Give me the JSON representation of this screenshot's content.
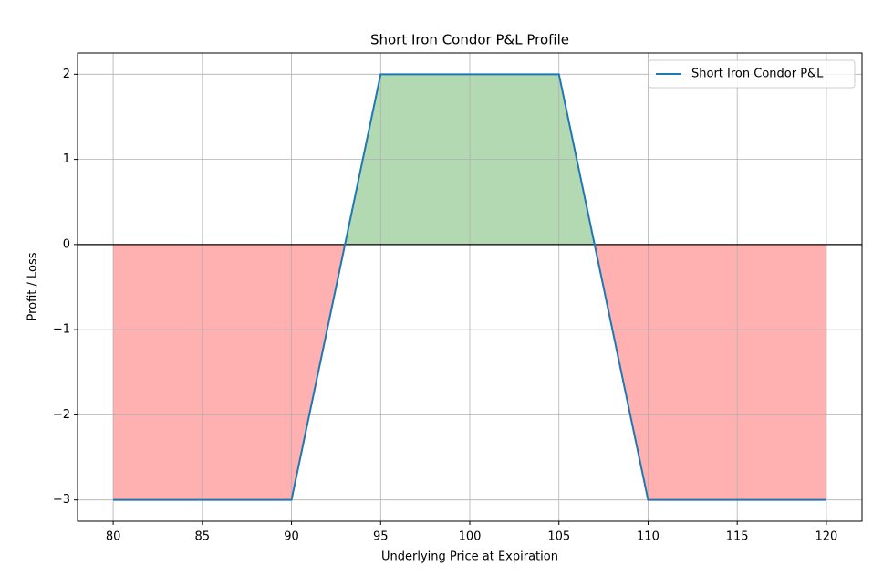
{
  "chart_data": {
    "type": "line",
    "title": "Short Iron Condor P&L Profile",
    "xlabel": "Underlying Price at Expiration",
    "ylabel": "Profit / Loss",
    "x": [
      80,
      90,
      93,
      95,
      105,
      107,
      110,
      120
    ],
    "series": [
      {
        "name": "Short Iron Condor P&L",
        "color": "#1f77b4",
        "values": [
          -3,
          -3,
          0,
          2,
          2,
          0,
          -3,
          -3
        ]
      }
    ],
    "fill_positive_color": "#b3d9b3",
    "fill_negative_color": "#ffb0b0",
    "axhline": 0,
    "xlim": [
      78,
      122
    ],
    "xticks": [
      80,
      85,
      90,
      95,
      100,
      105,
      110,
      115,
      120
    ],
    "ylim": [
      -3.25,
      2.25
    ],
    "yticks": [
      {
        "value": -3,
        "label": "−3"
      },
      {
        "value": -2,
        "label": "−2"
      },
      {
        "value": -1,
        "label": "−1"
      },
      0,
      1,
      2
    ],
    "grid": true,
    "legend": "upper right"
  }
}
